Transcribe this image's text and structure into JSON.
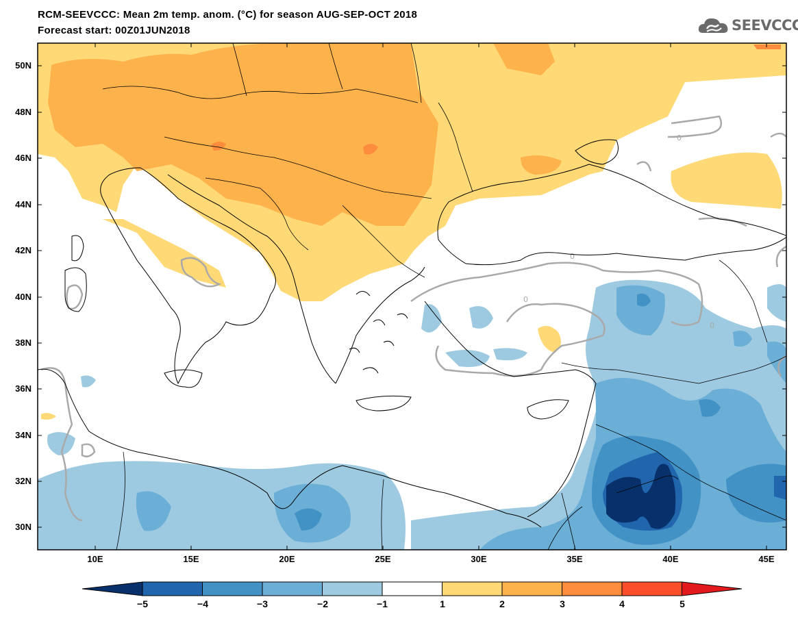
{
  "header": {
    "title": "RCM-SEEVCCC: Mean 2m temp. anom. (°C) for season AUG-SEP-OCT 2018",
    "forecast_start": "Forecast start: 00Z01JUN2018",
    "logo_text": "SEEVCCC"
  },
  "map": {
    "lon_range": [
      7,
      46
    ],
    "lat_range": [
      29,
      51
    ],
    "lat_ticks": [
      "50N",
      "48N",
      "46N",
      "44N",
      "42N",
      "40N",
      "38N",
      "36N",
      "34N",
      "32N",
      "30N"
    ],
    "lon_ticks": [
      "10E",
      "15E",
      "20E",
      "25E",
      "30E",
      "35E",
      "40E",
      "45E"
    ]
  },
  "colorbar": {
    "labels": [
      "−5",
      "−4",
      "−3",
      "−2",
      "−1",
      "1",
      "2",
      "3",
      "4",
      "5"
    ],
    "colors": [
      "#08306b",
      "#2166ac",
      "#4292c6",
      "#6baed6",
      "#9ecae1",
      "#ffffff",
      "#fed976",
      "#feb24c",
      "#fd8d3c",
      "#fc4e2a",
      "#e31a1c"
    ]
  }
}
